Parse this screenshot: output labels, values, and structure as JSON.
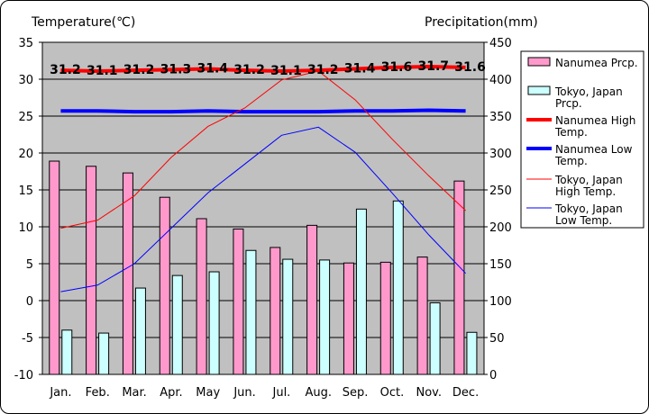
{
  "chart_data": {
    "type": "bar+line",
    "left_axis_title": "Temperature(℃)",
    "right_axis_title": "Precipitation(mm)",
    "categories": [
      "Jan.",
      "Feb.",
      "Mar.",
      "Apr.",
      "May",
      "Jun.",
      "Jul.",
      "Aug.",
      "Sep.",
      "Oct.",
      "Nov.",
      "Dec."
    ],
    "left_ylim": [
      -10,
      35
    ],
    "left_ticks": [
      "35",
      "30",
      "25",
      "20",
      "15",
      "10",
      "5",
      "0",
      "-5",
      "-10"
    ],
    "right_ylim": [
      0,
      450
    ],
    "right_ticks": [
      "450",
      "400",
      "350",
      "300",
      "250",
      "200",
      "150",
      "100",
      "50",
      "0"
    ],
    "bar_series": [
      {
        "name": "Nanumea Prcp.",
        "color": "#ff99cc",
        "values": [
          289,
          282,
          273,
          240,
          211,
          197,
          172,
          202,
          151,
          152,
          159,
          262
        ]
      },
      {
        "name": "Tokyo, Japan Prcp.",
        "color": "#ccffff",
        "values": [
          60,
          56,
          117,
          134,
          139,
          168,
          156,
          155,
          224,
          235,
          97,
          57
        ]
      }
    ],
    "line_series": [
      {
        "name": "Nanumea High Temp.",
        "color": "#ff0000",
        "weight": "thick",
        "values": [
          31.2,
          31.1,
          31.2,
          31.3,
          31.4,
          31.2,
          31.1,
          31.2,
          31.4,
          31.6,
          31.7,
          31.6
        ]
      },
      {
        "name": "Nanumea Low Temp.",
        "color": "#0000ff",
        "weight": "thick",
        "values": [
          25.7,
          25.7,
          25.6,
          25.6,
          25.7,
          25.6,
          25.6,
          25.6,
          25.7,
          25.7,
          25.8,
          25.7
        ]
      },
      {
        "name": "Tokyo, Japan High Temp.",
        "color": "#ff0000",
        "weight": "thin",
        "values": [
          9.8,
          10.9,
          14.2,
          19.4,
          23.6,
          26.1,
          29.9,
          31.1,
          27.2,
          21.9,
          16.9,
          12.2
        ]
      },
      {
        "name": "Tokyo, Japan Low Temp.",
        "color": "#0000ff",
        "weight": "thin",
        "values": [
          1.2,
          2.1,
          5.0,
          9.8,
          14.6,
          18.5,
          22.4,
          23.5,
          20.1,
          14.6,
          8.9,
          3.7
        ]
      }
    ],
    "data_labels": [
      "31.2",
      "31.1",
      "31.2",
      "31.3",
      "31.4",
      "31.2",
      "31.1",
      "31.2",
      "31.4",
      "31.6",
      "31.7",
      "31.6"
    ],
    "legend_position": "right",
    "legend": [
      {
        "lines": [
          "Nanumea Prcp."
        ],
        "kind": "bar",
        "color": "#ff99cc"
      },
      {
        "lines": [
          "Tokyo, Japan",
          "Prcp."
        ],
        "kind": "bar",
        "color": "#ccffff"
      },
      {
        "lines": [
          "Nanumea High",
          "Temp."
        ],
        "kind": "line",
        "color": "#ff0000",
        "weight": "thick"
      },
      {
        "lines": [
          "Nanumea Low",
          "Temp."
        ],
        "kind": "line",
        "color": "#0000ff",
        "weight": "thick"
      },
      {
        "lines": [
          "Tokyo, Japan",
          "High Temp."
        ],
        "kind": "line",
        "color": "#ff0000",
        "weight": "thin"
      },
      {
        "lines": [
          "Tokyo, Japan",
          "Low Temp."
        ],
        "kind": "line",
        "color": "#0000ff",
        "weight": "thin"
      }
    ],
    "grid": "horizontal",
    "plot_background": "#c0c0c0"
  }
}
